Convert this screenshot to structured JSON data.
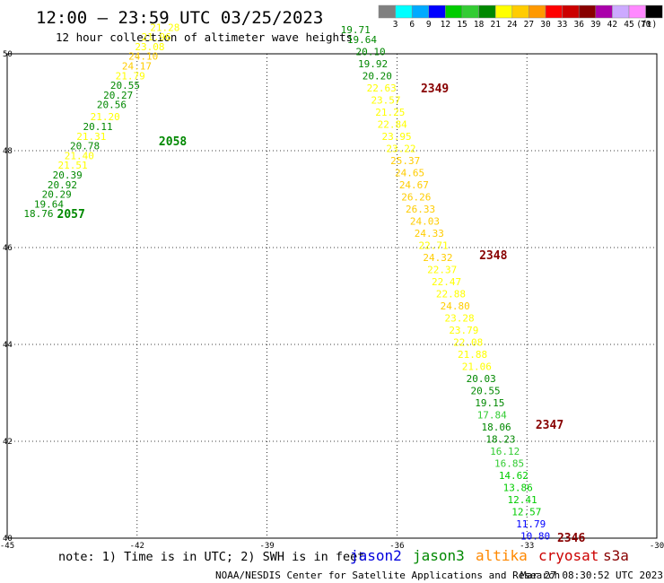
{
  "header": {
    "title": "12:00 — 23:59 UTC 03/25/2023",
    "subtitle": "12 hour collection of altimeter wave heights"
  },
  "colorbar": {
    "colors": [
      "#808080",
      "#00ffff",
      "#00aaff",
      "#0000ff",
      "#00cc00",
      "#33cc33",
      "#008800",
      "#ffff00",
      "#ffcc00",
      "#ff9900",
      "#ff0000",
      "#cc0000",
      "#880000",
      "#aa00aa",
      "#ccaaff",
      "#ff88ff",
      "#000000"
    ],
    "labels": [
      "3",
      "6",
      "9",
      "12",
      "15",
      "18",
      "21",
      "24",
      "27",
      "30",
      "33",
      "36",
      "39",
      "42",
      "45",
      "70"
    ],
    "unit": "(ft)"
  },
  "footer": {
    "note": "note: 1) Time is in UTC; 2) SWH is in feet",
    "credit": "NOAA/NESDIS Center for Satellite Applications and Research",
    "timestamp": "Mar 27 08:30:52 UTC 2023"
  },
  "chart_data": {
    "type": "scatter",
    "xlim": [
      -45,
      -30
    ],
    "ylim": [
      40,
      50
    ],
    "x_ticks": [
      "-45",
      "-42",
      "-39",
      "-36",
      "-33",
      "-30"
    ],
    "y_ticks": [
      "40",
      "42",
      "44",
      "46",
      "48",
      "50"
    ],
    "grid": true,
    "legend": [
      "jason2",
      "jason3",
      "altika",
      "cryosat",
      "s3a"
    ],
    "legend_colors": [
      "#0000dd",
      "#008800",
      "#ff8800",
      "#cc0000",
      "#880000"
    ],
    "passes": [
      {
        "label": "2057",
        "lon": -43.85,
        "lat": 46.7
      },
      {
        "label": "2058",
        "lon": -41.5,
        "lat": 48.2
      },
      {
        "label": "2349",
        "lon": -35.45,
        "lat": 49.3
      },
      {
        "label": "2348",
        "lon": -34.1,
        "lat": 45.85
      },
      {
        "label": "2347",
        "lon": -32.8,
        "lat": 42.35
      },
      {
        "label": "2346",
        "lon": -32.3,
        "lat": 40.02
      }
    ],
    "points": [
      {
        "lon": -44.62,
        "lat": 46.7,
        "value": "18.76"
      },
      {
        "lon": -44.38,
        "lat": 46.9,
        "value": "19.64"
      },
      {
        "lon": -44.2,
        "lat": 47.1,
        "value": "20.29"
      },
      {
        "lon": -44.07,
        "lat": 47.3,
        "value": "20.92"
      },
      {
        "lon": -43.95,
        "lat": 47.5,
        "value": "20.39"
      },
      {
        "lon": -43.83,
        "lat": 47.7,
        "value": "21.51"
      },
      {
        "lon": -43.68,
        "lat": 47.9,
        "value": "21.40"
      },
      {
        "lon": -43.55,
        "lat": 48.1,
        "value": "20.78"
      },
      {
        "lon": -43.4,
        "lat": 48.3,
        "value": "21.31"
      },
      {
        "lon": -43.25,
        "lat": 48.5,
        "value": "20.11"
      },
      {
        "lon": -43.08,
        "lat": 48.7,
        "value": "21.20"
      },
      {
        "lon": -42.93,
        "lat": 48.95,
        "value": "20.56"
      },
      {
        "lon": -42.78,
        "lat": 49.15,
        "value": "20.27"
      },
      {
        "lon": -42.62,
        "lat": 49.35,
        "value": "20.55"
      },
      {
        "lon": -42.5,
        "lat": 49.55,
        "value": "21.79"
      },
      {
        "lon": -42.35,
        "lat": 49.75,
        "value": "24.17"
      },
      {
        "lon": -42.2,
        "lat": 49.95,
        "value": "24.10"
      },
      {
        "lon": -42.05,
        "lat": 50.15,
        "value": "23.08"
      },
      {
        "lon": -41.9,
        "lat": 50.35,
        "value": "21.96"
      },
      {
        "lon": -41.7,
        "lat": 50.55,
        "value": "21.28"
      },
      {
        "lon": -37.3,
        "lat": 50.5,
        "value": "19.71"
      },
      {
        "lon": -37.15,
        "lat": 50.3,
        "value": "19.64"
      },
      {
        "lon": -36.95,
        "lat": 50.05,
        "value": "20.10"
      },
      {
        "lon": -36.9,
        "lat": 49.8,
        "value": "19.92"
      },
      {
        "lon": -36.8,
        "lat": 49.55,
        "value": "20.20"
      },
      {
        "lon": -36.7,
        "lat": 49.3,
        "value": "22.63"
      },
      {
        "lon": -36.6,
        "lat": 49.05,
        "value": "23.57"
      },
      {
        "lon": -36.5,
        "lat": 48.8,
        "value": "21.25"
      },
      {
        "lon": -36.45,
        "lat": 48.55,
        "value": "22.84"
      },
      {
        "lon": -36.35,
        "lat": 48.3,
        "value": "23.95"
      },
      {
        "lon": -36.25,
        "lat": 48.05,
        "value": "23.22"
      },
      {
        "lon": -36.15,
        "lat": 47.8,
        "value": "25.37"
      },
      {
        "lon": -36.05,
        "lat": 47.55,
        "value": "24.65"
      },
      {
        "lon": -35.95,
        "lat": 47.3,
        "value": "24.67"
      },
      {
        "lon": -35.9,
        "lat": 47.05,
        "value": "26.26"
      },
      {
        "lon": -35.8,
        "lat": 46.8,
        "value": "26.33"
      },
      {
        "lon": -35.7,
        "lat": 46.55,
        "value": "24.03"
      },
      {
        "lon": -35.6,
        "lat": 46.3,
        "value": "24.33"
      },
      {
        "lon": -35.5,
        "lat": 46.05,
        "value": "22.71"
      },
      {
        "lon": -35.4,
        "lat": 45.8,
        "value": "24.32"
      },
      {
        "lon": -35.3,
        "lat": 45.55,
        "value": "22.37"
      },
      {
        "lon": -35.2,
        "lat": 45.3,
        "value": "22.47"
      },
      {
        "lon": -35.1,
        "lat": 45.05,
        "value": "22.88"
      },
      {
        "lon": -35.0,
        "lat": 44.8,
        "value": "24.80"
      },
      {
        "lon": -34.9,
        "lat": 44.55,
        "value": "23.28"
      },
      {
        "lon": -34.8,
        "lat": 44.3,
        "value": "23.79"
      },
      {
        "lon": -34.7,
        "lat": 44.05,
        "value": "22.08"
      },
      {
        "lon": -34.6,
        "lat": 43.8,
        "value": "21.88"
      },
      {
        "lon": -34.5,
        "lat": 43.55,
        "value": "21.06"
      },
      {
        "lon": -34.4,
        "lat": 43.3,
        "value": "20.03"
      },
      {
        "lon": -34.3,
        "lat": 43.05,
        "value": "20.55"
      },
      {
        "lon": -34.2,
        "lat": 42.8,
        "value": "19.15"
      },
      {
        "lon": -34.15,
        "lat": 42.55,
        "value": "17.84"
      },
      {
        "lon": -34.05,
        "lat": 42.3,
        "value": "18.06"
      },
      {
        "lon": -33.95,
        "lat": 42.05,
        "value": "18.23"
      },
      {
        "lon": -33.85,
        "lat": 41.8,
        "value": "16.12"
      },
      {
        "lon": -33.75,
        "lat": 41.55,
        "value": "16.85"
      },
      {
        "lon": -33.65,
        "lat": 41.3,
        "value": "14.62"
      },
      {
        "lon": -33.55,
        "lat": 41.05,
        "value": "13.86"
      },
      {
        "lon": -33.45,
        "lat": 40.8,
        "value": "12.41"
      },
      {
        "lon": -33.35,
        "lat": 40.55,
        "value": "12.57"
      },
      {
        "lon": -33.25,
        "lat": 40.3,
        "value": "11.79"
      },
      {
        "lon": -33.15,
        "lat": 40.05,
        "value": "10.80"
      }
    ]
  }
}
